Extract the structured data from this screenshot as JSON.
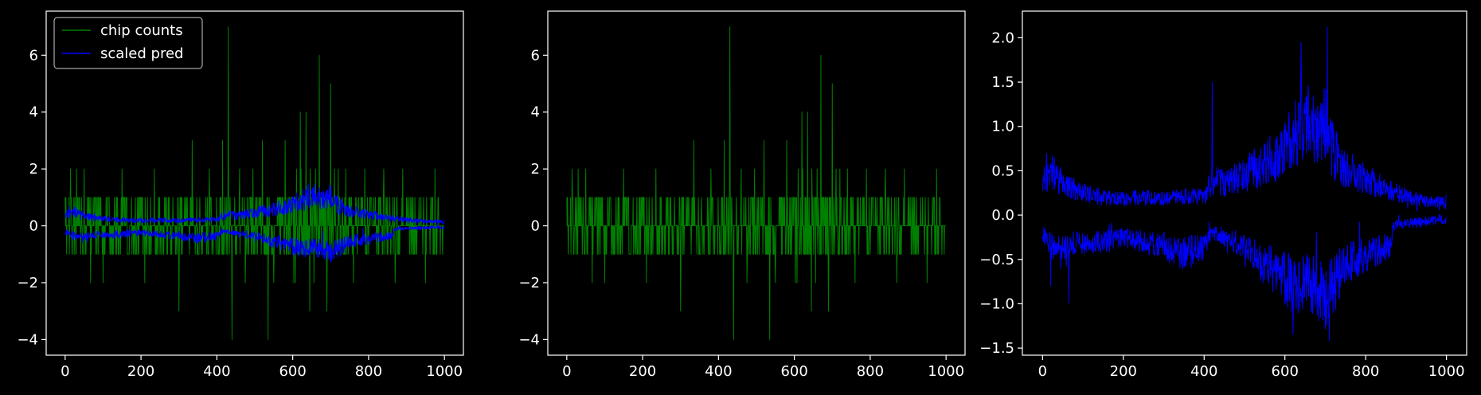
{
  "figure": {
    "background": "#000000",
    "axes_facecolor": "#000000",
    "spine_color": "#ffffff",
    "text_color": "#ffffff"
  },
  "chart_data": [
    {
      "type": "line",
      "title": "",
      "xlabel": "",
      "ylabel": "",
      "xlim": [
        -50,
        1050
      ],
      "ylim": [
        -4.55,
        7.55
      ],
      "xticks": [
        0,
        200,
        400,
        600,
        800,
        1000
      ],
      "xtick_labels": [
        "0",
        "200",
        "400",
        "600",
        "800",
        "1000"
      ],
      "yticks": [
        -4,
        -2,
        0,
        2,
        4,
        6
      ],
      "ytick_labels": [
        "−4",
        "−2",
        "0",
        "2",
        "4",
        "6"
      ],
      "grid": false,
      "legend": {
        "placement": "top-left",
        "entries": [
          {
            "label": "chip counts",
            "color": "#008000"
          },
          {
            "label": "scaled pred",
            "color": "#0000ff"
          }
        ]
      },
      "series": [
        {
          "name": "chip counts",
          "color": "#008000",
          "kind": "integer counts per index 0–999, mostly in [-1, 1]; occasional spikes",
          "x_range": [
            0,
            999
          ],
          "spikes": [
            [
              14,
              2
            ],
            [
              30,
              2
            ],
            [
              50,
              2
            ],
            [
              67,
              -2
            ],
            [
              100,
              -2
            ],
            [
              150,
              2
            ],
            [
              210,
              -2
            ],
            [
              235,
              2
            ],
            [
              300,
              -3
            ],
            [
              335,
              3
            ],
            [
              380,
              2
            ],
            [
              415,
              3
            ],
            [
              430,
              7
            ],
            [
              440,
              -4
            ],
            [
              460,
              2
            ],
            [
              475,
              -2
            ],
            [
              495,
              2
            ],
            [
              520,
              3
            ],
            [
              535,
              -4
            ],
            [
              550,
              -2
            ],
            [
              580,
              3
            ],
            [
              610,
              2
            ],
            [
              620,
              4
            ],
            [
              635,
              4
            ],
            [
              645,
              -3
            ],
            [
              660,
              2
            ],
            [
              670,
              6
            ],
            [
              690,
              -3
            ],
            [
              700,
              5
            ],
            [
              720,
              2
            ],
            [
              740,
              2
            ],
            [
              760,
              -2
            ],
            [
              790,
              2
            ],
            [
              840,
              2
            ],
            [
              870,
              -2
            ],
            [
              890,
              2
            ],
            [
              950,
              -2
            ],
            [
              975,
              2
            ]
          ],
          "positive_envelope": [
            [
              0,
              1
            ],
            [
              50,
              1
            ],
            [
              100,
              1
            ],
            [
              200,
              1
            ],
            [
              300,
              1
            ],
            [
              400,
              1
            ],
            [
              500,
              1
            ],
            [
              600,
              2
            ],
            [
              700,
              2
            ],
            [
              800,
              1
            ],
            [
              900,
              1
            ],
            [
              1000,
              1
            ]
          ],
          "negative_envelope": [
            [
              0,
              -1
            ],
            [
              50,
              -1
            ],
            [
              100,
              -1
            ],
            [
              200,
              -1
            ],
            [
              300,
              -1
            ],
            [
              400,
              -1
            ],
            [
              500,
              -1
            ],
            [
              600,
              -2
            ],
            [
              700,
              -2
            ],
            [
              800,
              -1
            ],
            [
              900,
              -1
            ],
            [
              1000,
              -1
            ]
          ]
        },
        {
          "name": "scaled pred",
          "color": "#0000ff",
          "kind": "two noisy bands (upper and lower) around zero",
          "upper_band": [
            [
              0,
              0.35
            ],
            [
              20,
              0.5
            ],
            [
              50,
              0.35
            ],
            [
              100,
              0.25
            ],
            [
              150,
              0.2
            ],
            [
              200,
              0.18
            ],
            [
              250,
              0.2
            ],
            [
              300,
              0.18
            ],
            [
              350,
              0.22
            ],
            [
              400,
              0.2
            ],
            [
              420,
              0.4
            ],
            [
              450,
              0.35
            ],
            [
              500,
              0.45
            ],
            [
              550,
              0.6
            ],
            [
              600,
              0.75
            ],
            [
              630,
              1.0
            ],
            [
              650,
              1.1
            ],
            [
              680,
              0.9
            ],
            [
              700,
              1.0
            ],
            [
              720,
              0.7
            ],
            [
              750,
              0.5
            ],
            [
              800,
              0.4
            ],
            [
              850,
              0.3
            ],
            [
              900,
              0.22
            ],
            [
              950,
              0.15
            ],
            [
              1000,
              0.15
            ]
          ],
          "lower_band": [
            [
              0,
              -0.2
            ],
            [
              20,
              -0.35
            ],
            [
              50,
              -0.35
            ],
            [
              100,
              -0.3
            ],
            [
              150,
              -0.3
            ],
            [
              200,
              -0.25
            ],
            [
              250,
              -0.3
            ],
            [
              300,
              -0.35
            ],
            [
              350,
              -0.45
            ],
            [
              400,
              -0.35
            ],
            [
              420,
              -0.2
            ],
            [
              450,
              -0.25
            ],
            [
              500,
              -0.35
            ],
            [
              550,
              -0.55
            ],
            [
              600,
              -0.7
            ],
            [
              630,
              -0.8
            ],
            [
              660,
              -0.75
            ],
            [
              700,
              -0.95
            ],
            [
              730,
              -0.7
            ],
            [
              750,
              -0.55
            ],
            [
              800,
              -0.45
            ],
            [
              860,
              -0.35
            ],
            [
              870,
              -0.12
            ],
            [
              900,
              -0.1
            ],
            [
              950,
              -0.07
            ],
            [
              1000,
              -0.04
            ]
          ]
        }
      ]
    },
    {
      "type": "line",
      "title": "",
      "xlabel": "",
      "ylabel": "",
      "xlim": [
        -50,
        1050
      ],
      "ylim": [
        -4.55,
        7.55
      ],
      "xticks": [
        0,
        200,
        400,
        600,
        800,
        1000
      ],
      "xtick_labels": [
        "0",
        "200",
        "400",
        "600",
        "800",
        "1000"
      ],
      "yticks": [
        -4,
        -2,
        0,
        2,
        4,
        6
      ],
      "ytick_labels": [
        "−4",
        "−2",
        "0",
        "2",
        "4",
        "6"
      ],
      "grid": false,
      "series": [
        {
          "color": "#008000",
          "kind": "integer counts per index 0–999, mostly in [-1, 1]; occasional spikes",
          "x_range": [
            0,
            999
          ],
          "spikes": [
            [
              14,
              2
            ],
            [
              30,
              2
            ],
            [
              50,
              2
            ],
            [
              67,
              -2
            ],
            [
              100,
              -2
            ],
            [
              150,
              2
            ],
            [
              210,
              -2
            ],
            [
              235,
              2
            ],
            [
              300,
              -3
            ],
            [
              335,
              3
            ],
            [
              380,
              2
            ],
            [
              415,
              3
            ],
            [
              430,
              7
            ],
            [
              440,
              -4
            ],
            [
              460,
              2
            ],
            [
              475,
              -2
            ],
            [
              495,
              2
            ],
            [
              520,
              3
            ],
            [
              535,
              -4
            ],
            [
              550,
              -2
            ],
            [
              580,
              3
            ],
            [
              610,
              2
            ],
            [
              620,
              4
            ],
            [
              635,
              4
            ],
            [
              645,
              -3
            ],
            [
              660,
              2
            ],
            [
              670,
              6
            ],
            [
              690,
              -3
            ],
            [
              700,
              5
            ],
            [
              720,
              2
            ],
            [
              740,
              2
            ],
            [
              760,
              -2
            ],
            [
              790,
              2
            ],
            [
              840,
              2
            ],
            [
              870,
              -2
            ],
            [
              890,
              2
            ],
            [
              950,
              -2
            ],
            [
              975,
              2
            ]
          ]
        }
      ]
    },
    {
      "type": "line",
      "title": "",
      "xlabel": "",
      "ylabel": "",
      "xlim": [
        -50,
        1050
      ],
      "ylim": [
        -1.58,
        2.3
      ],
      "xticks": [
        0,
        200,
        400,
        600,
        800,
        1000
      ],
      "xtick_labels": [
        "0",
        "200",
        "400",
        "600",
        "800",
        "1000"
      ],
      "yticks": [
        -1.5,
        -1.0,
        -0.5,
        0.0,
        0.5,
        1.0,
        1.5,
        2.0
      ],
      "ytick_labels": [
        "−1.5",
        "−1.0",
        "−0.5",
        "0.0",
        "0.5",
        "1.0",
        "1.5",
        "2.0"
      ],
      "grid": false,
      "series": [
        {
          "color": "#0000ff",
          "kind": "two noisy bands (upper and lower) around zero",
          "upper_band": [
            [
              0,
              0.35
            ],
            [
              20,
              0.5
            ],
            [
              50,
              0.35
            ],
            [
              100,
              0.25
            ],
            [
              150,
              0.2
            ],
            [
              200,
              0.18
            ],
            [
              250,
              0.2
            ],
            [
              300,
              0.18
            ],
            [
              350,
              0.22
            ],
            [
              400,
              0.2
            ],
            [
              420,
              0.4
            ],
            [
              450,
              0.35
            ],
            [
              500,
              0.45
            ],
            [
              550,
              0.6
            ],
            [
              600,
              0.75
            ],
            [
              630,
              1.0
            ],
            [
              650,
              1.1
            ],
            [
              680,
              0.9
            ],
            [
              700,
              1.0
            ],
            [
              720,
              0.7
            ],
            [
              750,
              0.5
            ],
            [
              800,
              0.4
            ],
            [
              850,
              0.3
            ],
            [
              900,
              0.22
            ],
            [
              950,
              0.15
            ],
            [
              1000,
              0.15
            ]
          ],
          "lower_band": [
            [
              0,
              -0.2
            ],
            [
              20,
              -0.35
            ],
            [
              50,
              -0.35
            ],
            [
              100,
              -0.3
            ],
            [
              150,
              -0.3
            ],
            [
              200,
              -0.25
            ],
            [
              250,
              -0.3
            ],
            [
              300,
              -0.35
            ],
            [
              350,
              -0.45
            ],
            [
              400,
              -0.35
            ],
            [
              420,
              -0.2
            ],
            [
              450,
              -0.25
            ],
            [
              500,
              -0.35
            ],
            [
              550,
              -0.55
            ],
            [
              600,
              -0.7
            ],
            [
              630,
              -0.8
            ],
            [
              660,
              -0.75
            ],
            [
              700,
              -0.95
            ],
            [
              730,
              -0.7
            ],
            [
              750,
              -0.55
            ],
            [
              800,
              -0.45
            ],
            [
              860,
              -0.35
            ],
            [
              870,
              -0.12
            ],
            [
              900,
              -0.1
            ],
            [
              950,
              -0.07
            ],
            [
              1000,
              -0.04
            ]
          ],
          "peak_spikes": [
            [
              420,
              1.5
            ],
            [
              640,
              1.95
            ],
            [
              705,
              2.12
            ],
            [
              710,
              -1.42
            ],
            [
              620,
              -1.35
            ],
            [
              65,
              -1.0
            ],
            [
              20,
              -0.8
            ]
          ]
        }
      ]
    }
  ]
}
